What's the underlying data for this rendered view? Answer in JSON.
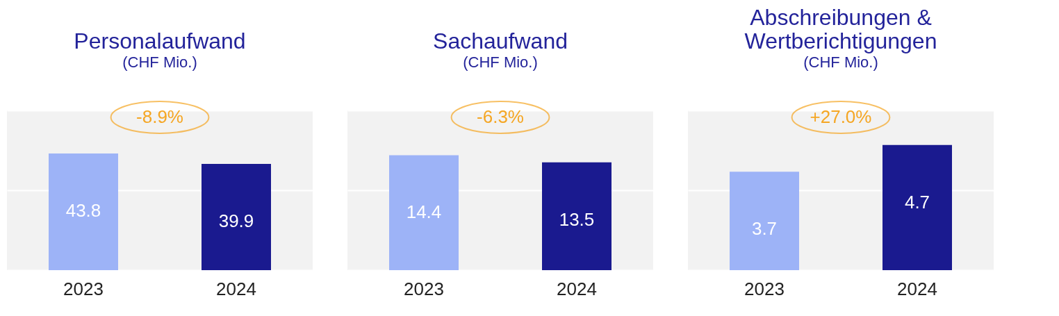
{
  "chart_data": [
    {
      "type": "bar",
      "title": "Personalaufwand",
      "subtitle": "(CHF Mio.)",
      "categories": [
        "2023",
        "2024"
      ],
      "values": [
        43.8,
        39.9
      ],
      "colors": [
        "#9db3f7",
        "#1a1a8f"
      ],
      "data_labels": true,
      "annotations": [
        "-8.9%"
      ],
      "ylim": [
        0,
        60
      ],
      "yticks": [
        {
          "value": 0,
          "label": null
        },
        {
          "value": 30,
          "label": null
        },
        {
          "value": 60,
          "label": null
        }
      ],
      "tick_labels": "x",
      "grid": "y"
    },
    {
      "type": "bar",
      "title": "Sachaufwand",
      "subtitle": "(CHF Mio.)",
      "categories": [
        "2023",
        "2024"
      ],
      "values": [
        14.4,
        13.5
      ],
      "colors": [
        "#9db3f7",
        "#1a1a8f"
      ],
      "data_labels": true,
      "annotations": [
        "-6.3%"
      ],
      "ylim": [
        0,
        20
      ],
      "yticks": [
        {
          "value": 0,
          "label": null
        },
        {
          "value": 10,
          "label": null
        },
        {
          "value": 20,
          "label": null
        }
      ],
      "tick_labels": "x",
      "grid": "y"
    },
    {
      "type": "bar",
      "title": "Abschreibungen & Wertberichtigungen",
      "subtitle": "(CHF Mio.)",
      "categories": [
        "2023",
        "2024"
      ],
      "values": [
        3.7,
        4.7
      ],
      "colors": [
        "#9db3f7",
        "#1a1a8f"
      ],
      "data_labels": true,
      "annotations": [
        "+27.0%"
      ],
      "ylim": [
        0,
        6
      ],
      "yticks": [
        {
          "value": 0,
          "label": null
        },
        {
          "value": 3,
          "label": null
        },
        {
          "value": 6,
          "label": null
        }
      ],
      "tick_labels": "x",
      "grid": "y"
    }
  ]
}
